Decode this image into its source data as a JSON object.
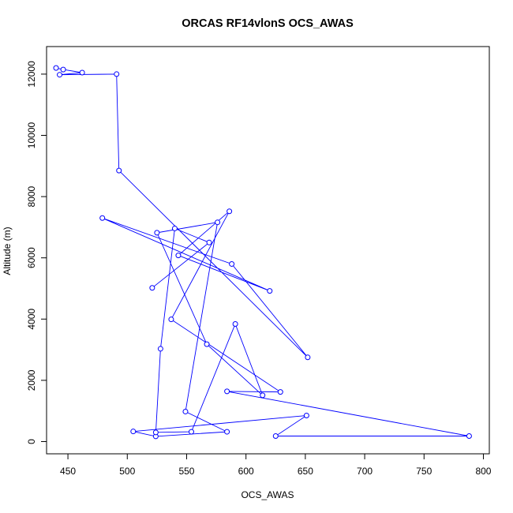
{
  "chart_data": {
    "type": "line",
    "title": "ORCAS RF14vlonS OCS_AWAS",
    "xlabel": "OCS_AWAS",
    "ylabel": "Altitude (m)",
    "xlim": [
      432,
      805
    ],
    "ylim": [
      -400,
      12900
    ],
    "xticks": [
      450,
      500,
      550,
      600,
      650,
      700,
      750,
      800
    ],
    "yticks": [
      0,
      2000,
      4000,
      6000,
      8000,
      10000,
      12000
    ],
    "grid": false,
    "marker": "open-circle",
    "color": "#0000ff",
    "series": [
      {
        "x": [
          440,
          446,
          462,
          443,
          491,
          493,
          652,
          588,
          479,
          620,
          543,
          586,
          537,
          629,
          584,
          788,
          625,
          651,
          505,
          524,
          584,
          549,
          576,
          525,
          567,
          614,
          591,
          554,
          524,
          528,
          540,
          569,
          521
        ],
        "y": [
          12200,
          12150,
          12050,
          11980,
          12000,
          8850,
          2750,
          5800,
          7300,
          4920,
          6080,
          7520,
          3990,
          1620,
          1640,
          180,
          180,
          850,
          330,
          170,
          320,
          980,
          7160,
          6820,
          3180,
          1510,
          3840,
          320,
          300,
          3030,
          6960,
          6500,
          5020
        ]
      }
    ]
  }
}
